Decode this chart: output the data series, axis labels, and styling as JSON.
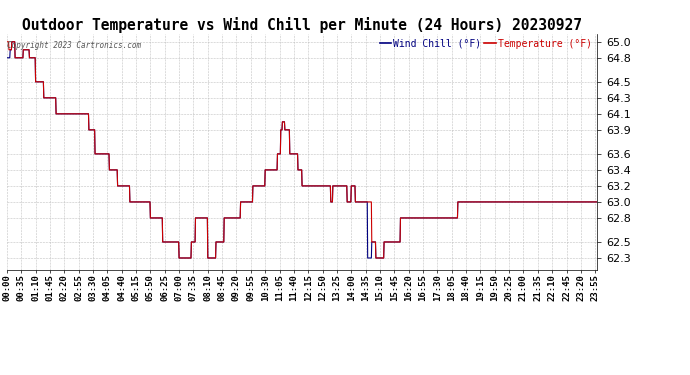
{
  "title": "Outdoor Temperature vs Wind Chill per Minute (24 Hours) 20230927",
  "copyright": "Copyright 2023 Cartronics.com",
  "legend_wind_chill": "Wind Chill (°F)",
  "legend_temperature": "Temperature (°F)",
  "wind_chill_color": "#000080",
  "temperature_color": "#cc0000",
  "ylim": [
    62.15,
    65.1
  ],
  "yticks": [
    62.3,
    62.5,
    62.8,
    63.0,
    63.2,
    63.4,
    63.6,
    63.9,
    64.1,
    64.3,
    64.5,
    64.8,
    65.0
  ],
  "background_color": "#ffffff",
  "grid_color": "#bbbbbb",
  "title_fontsize": 10.5,
  "tick_label_fontsize": 6.5,
  "x_tick_interval_minutes": 35,
  "total_minutes": 1440,
  "x_tick_labels": [
    "00:00",
    "00:35",
    "01:10",
    "01:45",
    "02:20",
    "02:55",
    "03:30",
    "04:05",
    "04:40",
    "05:15",
    "05:50",
    "06:25",
    "07:00",
    "07:35",
    "08:10",
    "08:45",
    "09:20",
    "09:55",
    "10:30",
    "11:05",
    "11:40",
    "12:15",
    "12:50",
    "13:25",
    "14:00",
    "14:35",
    "15:10",
    "15:45",
    "16:20",
    "16:55",
    "17:30",
    "18:05",
    "18:40",
    "19:15",
    "19:50",
    "20:25",
    "21:00",
    "21:35",
    "22:10",
    "22:45",
    "23:20",
    "23:55"
  ]
}
